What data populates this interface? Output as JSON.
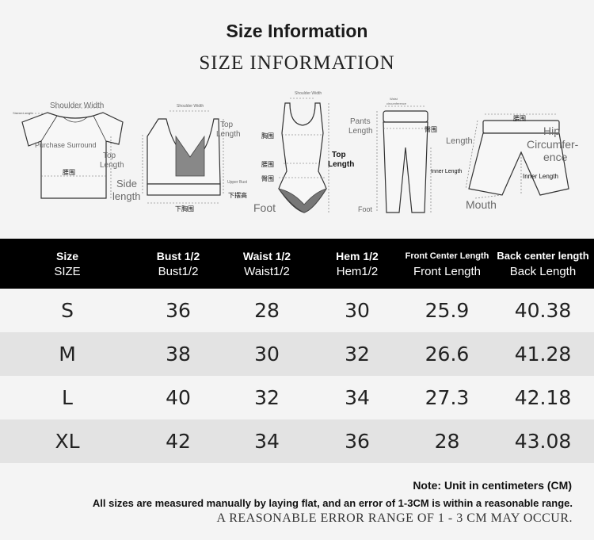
{
  "title": "Size Information",
  "subtitle": "SIZE INFORMATION",
  "illustrations": {
    "tshirt": {
      "sleeve_length": "Sleeve Length",
      "shoulder_width": "Shoulder Width",
      "purchase_surround": "Purchase Surround",
      "top_length": "Top Length",
      "waist": "腰围"
    },
    "tank": {
      "shoulder_width": "Shoulder Width",
      "top_length": "Top Length",
      "side_length": "Side length",
      "upper_bust": "Upper Bust",
      "hem_height": "下摆高",
      "lower_bust": "下胸围"
    },
    "bodysuit": {
      "shoulder_width": "Shoulder Width",
      "bust": "胸围",
      "waist": "腰围",
      "hip": "臀围",
      "top_length": "Top Length",
      "foot": "Foot"
    },
    "pants": {
      "waist_circumference": "Waist circumference",
      "pants_length": "Pants Length",
      "hip": "臀围",
      "inner_length": "Inner Length",
      "foot": "Foot"
    },
    "shorts": {
      "waist": "腰围",
      "hip_circumference": "Hip Circumference",
      "length": "Length",
      "inner_length": "Inner Length",
      "mouth": "Mouth"
    }
  },
  "table": {
    "headers": [
      {
        "line1": "Size",
        "line2": "SIZE"
      },
      {
        "line1": "Bust 1/2",
        "line2": "Bust1/2"
      },
      {
        "line1": "Waist 1/2",
        "line2": "Waist1/2"
      },
      {
        "line1": "Hem 1/2",
        "line2": "Hem1/2"
      },
      {
        "line1": "Front Center Length",
        "line2": "Front Length"
      },
      {
        "line1": "Back center length",
        "line2": "Back Length"
      }
    ],
    "rows": [
      [
        "S",
        "36",
        "28",
        "30",
        "25.9",
        "40.38"
      ],
      [
        "M",
        "38",
        "30",
        "32",
        "26.6",
        "41.28"
      ],
      [
        "L",
        "40",
        "32",
        "34",
        "27.3",
        "42.18"
      ],
      [
        "XL",
        "42",
        "34",
        "36",
        "28",
        "43.08"
      ]
    ]
  },
  "notes": {
    "unit": "Note: Unit in centimeters (CM)",
    "measure": "All sizes are measured manually by laying flat, and an error of 1-3CM is within a reasonable range.",
    "error": "A REASONABLE ERROR RANGE OF 1 - 3 CM MAY OCCUR."
  },
  "colors": {
    "header_bg": "#000000",
    "row_odd": "#f4f4f4",
    "row_even": "#e3e3e3",
    "accent_gray": "#6a6a6a"
  }
}
